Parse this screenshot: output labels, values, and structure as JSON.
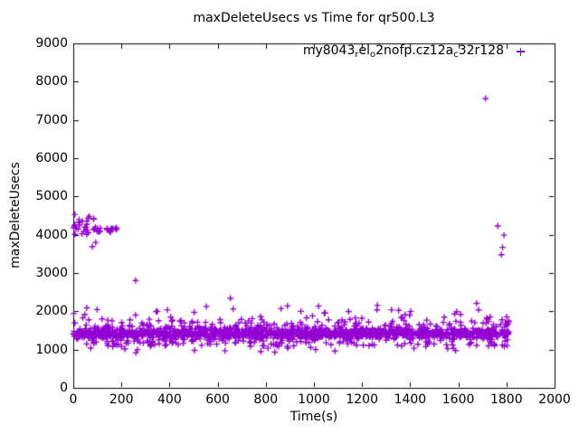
{
  "chart_data": {
    "type": "scatter",
    "title": "maxDeleteUsecs vs Time for qr500.L3",
    "xlabel": "Time(s)",
    "ylabel": "maxDeleteUsecs",
    "xlim": [
      0,
      2000
    ],
    "ylim": [
      0,
      9000
    ],
    "xticks": [
      0,
      200,
      400,
      600,
      800,
      1000,
      1200,
      1400,
      1600,
      1800,
      2000
    ],
    "yticks": [
      0,
      1000,
      2000,
      3000,
      4000,
      5000,
      6000,
      7000,
      8000,
      9000
    ],
    "grid": false,
    "axis_color": "#000000",
    "text_color": "#000000",
    "background": "#ffffff",
    "legend": {
      "position": "top-right-inside",
      "entries": [
        {
          "label_plain": "my8043_rel_o2nofp.cz12a_c32r128",
          "label_segments": [
            {
              "text": "my8043",
              "sub": false
            },
            {
              "text": "r",
              "sub": true
            },
            {
              "text": "el",
              "sub": false
            },
            {
              "text": "o",
              "sub": true
            },
            {
              "text": "2nofp.cz12a",
              "sub": false
            },
            {
              "text": "c",
              "sub": true
            },
            {
              "text": "32r128",
              "sub": false
            }
          ],
          "marker": "plus",
          "color": "#9400D3"
        }
      ]
    },
    "series": [
      {
        "name": "my8043_rel_o2nofp.cz12a_c32r128",
        "marker": "plus",
        "color": "#9400D3",
        "point_count_estimate": 1712,
        "clusters": [
          {
            "desc": "main steady band of delete latencies",
            "t_range": [
              0,
              1810
            ],
            "count": 1650,
            "v_core": [
              1260,
              1580
            ],
            "v_low_fringe": [
              1080,
              1280
            ],
            "v_high_fringe": [
              1580,
              1850
            ],
            "v_spikes": [
              1850,
              2170
            ],
            "v_rare_dips": [
              900,
              1100
            ]
          },
          {
            "desc": "startup high-latency cluster",
            "t_range": [
              0,
              185
            ],
            "count": 46,
            "v_range": [
              3690,
              4600
            ],
            "v_tight_line": [
              4060,
              4210
            ]
          }
        ],
        "outliers": [
          [
            2,
            1945
          ],
          [
            48,
            1920
          ],
          [
            56,
            2090
          ],
          [
            79,
            3690
          ],
          [
            93,
            3800
          ],
          [
            259,
            2805
          ],
          [
            391,
            2040
          ],
          [
            653,
            2340
          ],
          [
            890,
            2140
          ],
          [
            946,
            2000
          ],
          [
            1352,
            2025
          ],
          [
            1676,
            2210
          ],
          [
            1713,
            7560
          ],
          [
            1764,
            4230
          ],
          [
            1779,
            3480
          ],
          [
            1784,
            3670
          ],
          [
            1790,
            3990
          ]
        ]
      }
    ]
  }
}
